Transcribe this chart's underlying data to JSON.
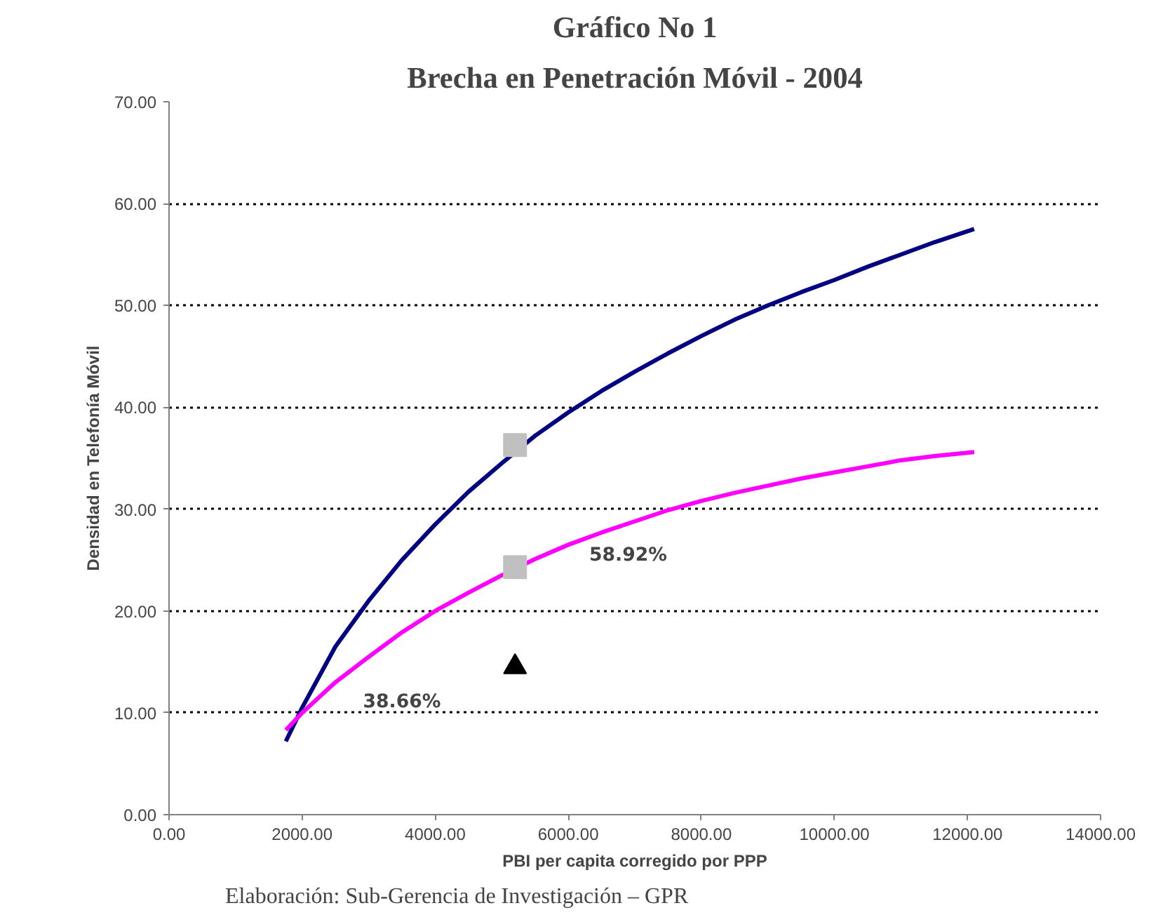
{
  "chart_data": {
    "type": "line",
    "title": "Gráfico No 1",
    "subtitle": "Brecha en Penetración Móvil - 2004",
    "xlabel": "PBI per capita corregido por PPP",
    "ylabel": "Densidad en Telefonía Móvil",
    "xlim": [
      0,
      14000
    ],
    "ylim": [
      0,
      70
    ],
    "xticks": [
      {
        "value": 0,
        "label": "0.00"
      },
      {
        "value": 2000,
        "label": "2000.00"
      },
      {
        "value": 4000,
        "label": "4000.00"
      },
      {
        "value": 6000,
        "label": "6000.00"
      },
      {
        "value": 8000,
        "label": "8000.00"
      },
      {
        "value": 10000,
        "label": "10000.00"
      },
      {
        "value": 12000,
        "label": "12000.00"
      },
      {
        "value": 14000,
        "label": "14000.00"
      }
    ],
    "yticks": [
      {
        "value": 0,
        "label": "0.00"
      },
      {
        "value": 10,
        "label": "10.00"
      },
      {
        "value": 20,
        "label": "20.00"
      },
      {
        "value": 30,
        "label": "30.00"
      },
      {
        "value": 40,
        "label": "40.00"
      },
      {
        "value": 50,
        "label": "50.00"
      },
      {
        "value": 60,
        "label": "60.00"
      },
      {
        "value": 70,
        "label": "70.00"
      }
    ],
    "grid": "y",
    "marker": "none",
    "line_style": "solid",
    "series": [
      {
        "color": "#000080",
        "x": [
          1755,
          2000,
          2500,
          3000,
          3500,
          4000,
          4500,
          5000,
          5500,
          6000,
          6500,
          7000,
          7500,
          8000,
          8500,
          9000,
          9500,
          10000,
          10500,
          11000,
          11500,
          12100
        ],
        "values": [
          7.2,
          10.5,
          16.5,
          21,
          25,
          28.5,
          31.7,
          34.5,
          37.2,
          39.5,
          41.6,
          43.5,
          45.3,
          47,
          48.6,
          50,
          51.3,
          52.5,
          53.8,
          55,
          56.2,
          57.5
        ]
      },
      {
        "color": "#ff00ff",
        "x": [
          1755,
          2000,
          2500,
          3000,
          3500,
          4000,
          4500,
          5000,
          5500,
          6000,
          6500,
          7000,
          7500,
          8000,
          8500,
          9000,
          9500,
          10000,
          10500,
          11000,
          11500,
          12100
        ],
        "values": [
          8.3,
          10,
          13,
          15.5,
          17.9,
          20,
          21.8,
          23.5,
          25.1,
          26.5,
          27.7,
          28.8,
          29.9,
          30.8,
          31.6,
          32.3,
          33,
          33.6,
          34.2,
          34.8,
          35.2,
          35.6
        ]
      },
      {
        "type": "scatter",
        "marker": "square",
        "color": "#c0c0c0",
        "x": [
          5200,
          5200
        ],
        "values": [
          36.3,
          24.3
        ]
      },
      {
        "type": "scatter",
        "marker": "triangle",
        "color": "#000000",
        "x": [
          5200
        ],
        "values": [
          14.5
        ]
      }
    ],
    "annotations": [
      "58.92%",
      "38.66%",
      "Elaboración: Sub-Gerencia de Investigación – GPR"
    ]
  }
}
